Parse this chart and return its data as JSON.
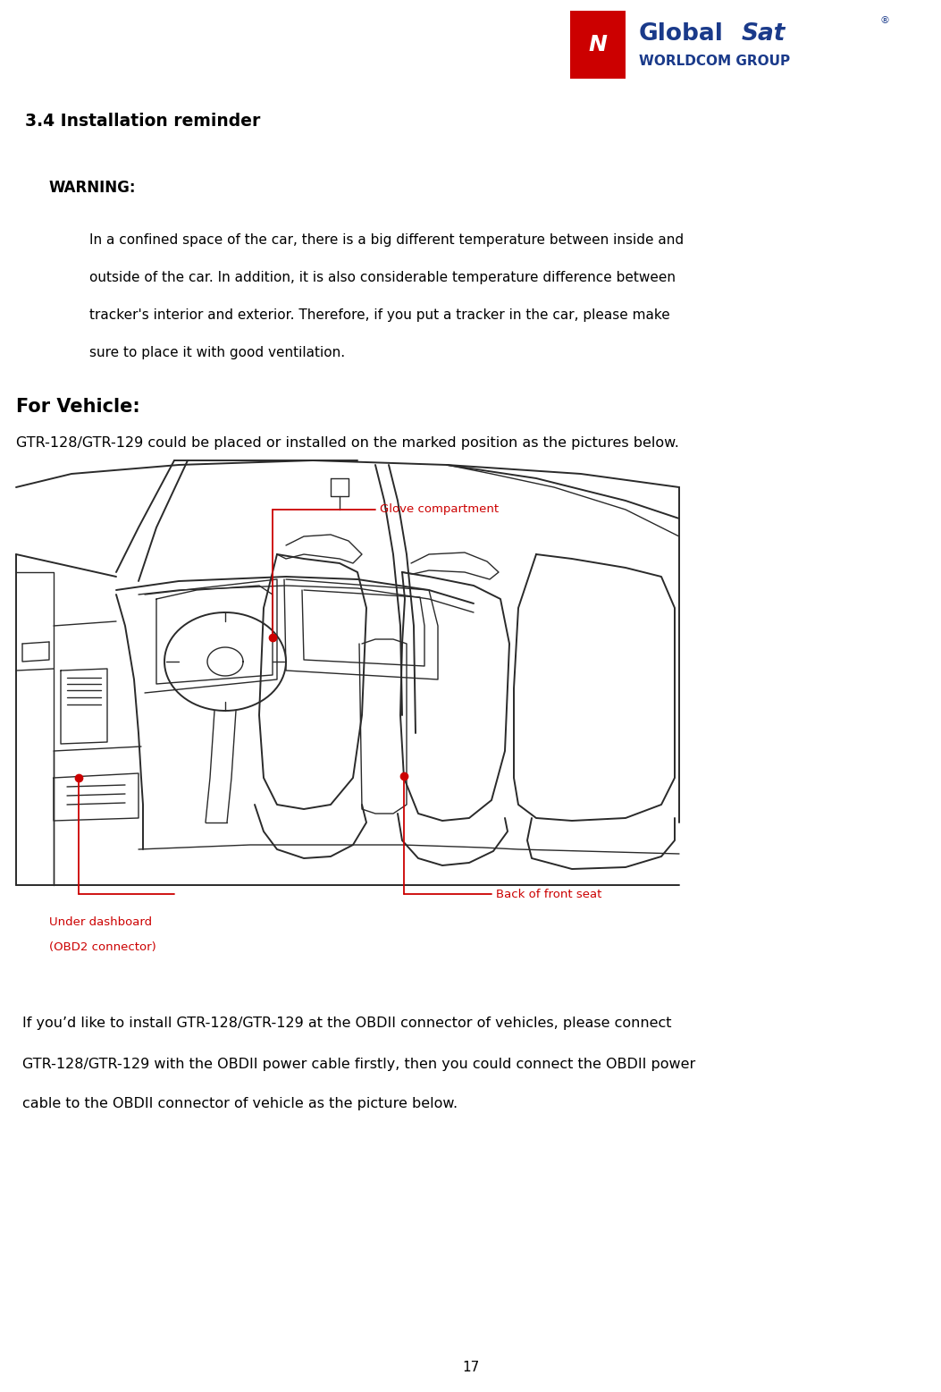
{
  "page_width": 10.53,
  "page_height": 15.57,
  "dpi": 100,
  "bg_color": "#ffffff",
  "page_number": "17",
  "section_title": "3.4 Installation reminder",
  "warning_label": "WARNING:",
  "warning_line1": "In a confined space of the car, there is a big different temperature between inside and",
  "warning_line2": "outside of the car. In addition, it is also considerable temperature difference between",
  "warning_line3": "tracker's interior and exterior. Therefore, if you put a tracker in the car, please make",
  "warning_line4": "sure to place it with good ventilation.",
  "for_vehicle_label": "For Vehicle:",
  "for_vehicle_body": "GTR-128/GTR-129 could be placed or installed on the marked position as the pictures below.",
  "label_glove": "Glove compartment",
  "label_dashboard_1": "Under dashboard",
  "label_dashboard_2": "(OBD2 connector)",
  "label_backseat": "Back of front seat",
  "bottom_line1": "If you’d like to install GTR-128/GTR-129 at the OBDII connector of vehicles, please connect",
  "bottom_line2": "GTR-128/GTR-129 with the OBDII power cable firstly, then you could connect the OBDII power",
  "bottom_line3": "cable to the OBDII connector of vehicle as the picture below.",
  "text_color": "#000000",
  "red_color": "#cc0000",
  "blue_color": "#1a3a8a",
  "line_color": "#333333",
  "logo_blue": "#1a3a8a",
  "logo_red": "#cc0000"
}
